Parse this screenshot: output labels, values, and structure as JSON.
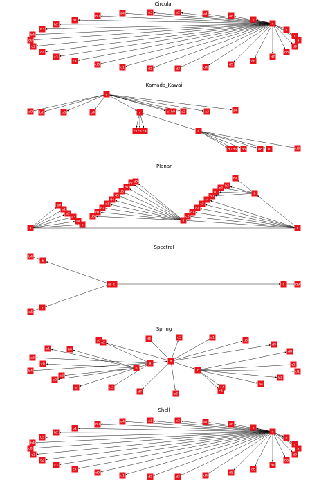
{
  "panels": [
    {
      "title": "Circular",
      "nodes": [
        {
          "id": "e",
          "label": "e"
        },
        {
          "id": "d",
          "label": "d"
        },
        {
          "id": "b",
          "label": "b"
        },
        {
          "id": "c",
          "label": "c"
        },
        {
          "id": "a",
          "label": "a"
        },
        {
          "id": "a1",
          "label": "a1"
        },
        {
          "id": "a2",
          "label": "a2"
        },
        {
          "id": "a3",
          "label": "a3"
        },
        {
          "id": "a4",
          "label": "a4"
        },
        {
          "id": "a6",
          "label": "a6"
        },
        {
          "id": "b0",
          "label": "b0"
        },
        {
          "id": "b1",
          "label": "b1"
        },
        {
          "id": "b2",
          "label": "b2"
        },
        {
          "id": "b3",
          "label": "b3"
        },
        {
          "id": "b4",
          "label": "b4"
        },
        {
          "id": "c0",
          "label": "c0"
        },
        {
          "id": "c1",
          "label": "c1"
        },
        {
          "id": "c2",
          "label": "c2"
        },
        {
          "id": "c3",
          "label": "c3"
        },
        {
          "id": "c4",
          "label": "c4"
        },
        {
          "id": "d0",
          "label": "d0"
        },
        {
          "id": "d1",
          "label": "d1"
        },
        {
          "id": "d2",
          "label": "d2"
        },
        {
          "id": "d3",
          "label": "d3"
        },
        {
          "id": "d4",
          "label": "d4"
        },
        {
          "id": "d5",
          "label": "d5"
        },
        {
          "id": "d6",
          "label": "d6"
        },
        {
          "id": "d7",
          "label": "d7"
        },
        {
          "id": "d8",
          "label": "d8"
        },
        {
          "id": "d9",
          "label": "d9"
        }
      ]
    },
    {
      "title": "Kamada_Kawai",
      "nodes": [
        {
          "id": "a",
          "label": "a"
        },
        {
          "id": "c",
          "label": "c"
        },
        {
          "id": "d",
          "label": "d"
        },
        {
          "id": "a0",
          "label": "a0"
        },
        {
          "id": "b2",
          "label": "b2"
        },
        {
          "id": "b3",
          "label": "b3"
        },
        {
          "id": "b4",
          "label": "b4"
        },
        {
          "id": "a1",
          "label": "a1"
        },
        {
          "id": "b0",
          "label": "b0"
        },
        {
          "id": "a2",
          "label": "a2"
        },
        {
          "id": "a3",
          "label": "a3"
        },
        {
          "id": "a4",
          "label": "a4"
        },
        {
          "id": "c1",
          "label": "c1"
        },
        {
          "id": "c3",
          "label": "c3"
        },
        {
          "id": "c4",
          "label": "c4"
        },
        {
          "id": "d0",
          "label": "d0"
        },
        {
          "id": "d5",
          "label": "d5"
        },
        {
          "id": "d6",
          "label": "d6"
        },
        {
          "id": "d8",
          "label": "d8"
        },
        {
          "id": "e",
          "label": "e"
        },
        {
          "id": "d9",
          "label": "d9"
        }
      ]
    },
    {
      "title": "Planar",
      "nodes": [
        {
          "id": "a",
          "label": "a"
        },
        {
          "id": "e",
          "label": "e"
        },
        {
          "id": "d",
          "label": "d"
        },
        {
          "id": "c",
          "label": "c"
        },
        {
          "id": "b",
          "label": "b"
        },
        {
          "id": "a0",
          "label": "a0"
        },
        {
          "id": "a1",
          "label": "a1"
        },
        {
          "id": "a2",
          "label": "a2"
        },
        {
          "id": "a3",
          "label": "a3"
        },
        {
          "id": "a4",
          "label": "a4"
        },
        {
          "id": "d0",
          "label": "d0"
        },
        {
          "id": "d1",
          "label": "d1"
        },
        {
          "id": "d2",
          "label": "d2"
        },
        {
          "id": "d3",
          "label": "d3"
        },
        {
          "id": "d4",
          "label": "d4"
        },
        {
          "id": "d5",
          "label": "d5"
        },
        {
          "id": "d6",
          "label": "d6"
        },
        {
          "id": "d7",
          "label": "d7"
        },
        {
          "id": "d8",
          "label": "d8"
        },
        {
          "id": "d9",
          "label": "d9"
        },
        {
          "id": "c0",
          "label": "c0"
        },
        {
          "id": "c1",
          "label": "c1"
        },
        {
          "id": "c2",
          "label": "c2"
        },
        {
          "id": "c3",
          "label": "c3"
        },
        {
          "id": "c4",
          "label": "c4"
        },
        {
          "id": "b0",
          "label": "b0"
        },
        {
          "id": "b1",
          "label": "b1"
        },
        {
          "id": "b2",
          "label": "b2"
        },
        {
          "id": "b3",
          "label": "b3"
        },
        {
          "id": "b4",
          "label": "b4"
        }
      ]
    },
    {
      "title": "Spectral",
      "nodes": [
        {
          "id": "b4",
          "label": "b4"
        },
        {
          "id": "b",
          "label": "b"
        },
        {
          "id": "ab",
          "label": "ab"
        },
        {
          "id": "c",
          "label": "c"
        },
        {
          "id": "a",
          "label": "a"
        },
        {
          "id": "a4",
          "label": "a4"
        },
        {
          "id": "d",
          "label": "d"
        },
        {
          "id": "d9",
          "label": "d9"
        }
      ]
    },
    {
      "title": "Spring",
      "nodes": [
        {
          "id": "a",
          "label": "a"
        },
        {
          "id": "b",
          "label": "b"
        },
        {
          "id": "c",
          "label": "c"
        },
        {
          "id": "d",
          "label": "d"
        },
        {
          "id": "e",
          "label": "e"
        },
        {
          "id": "b1",
          "label": "b1"
        },
        {
          "id": "b0",
          "label": "b0"
        },
        {
          "id": "a3",
          "label": "a3"
        },
        {
          "id": "a2x",
          "label": "a2"
        },
        {
          "id": "d4",
          "label": "d4"
        },
        {
          "id": "d5",
          "label": "d5"
        },
        {
          "id": "a1",
          "label": "a1"
        },
        {
          "id": "d0",
          "label": "d0"
        },
        {
          "id": "d9",
          "label": "d9"
        },
        {
          "id": "d8",
          "label": "d8"
        },
        {
          "id": "c0",
          "label": "c0"
        },
        {
          "id": "b4",
          "label": "b4"
        },
        {
          "id": "c1",
          "label": "c1"
        },
        {
          "id": "c2",
          "label": "c2"
        },
        {
          "id": "d1",
          "label": "d1"
        },
        {
          "id": "a0",
          "label": "a0"
        },
        {
          "id": "a2",
          "label": "a2"
        },
        {
          "id": "b3",
          "label": "b3"
        },
        {
          "id": "d3",
          "label": "d3"
        },
        {
          "id": "d7",
          "label": "d7"
        },
        {
          "id": "b2",
          "label": "b2"
        },
        {
          "id": "c4",
          "label": "c4"
        },
        {
          "id": "c3",
          "label": "c3"
        },
        {
          "id": "a4",
          "label": "a4"
        },
        {
          "id": "a6",
          "label": "a6"
        }
      ]
    },
    {
      "title": "Shell",
      "nodes": [
        {
          "id": "e",
          "label": "e"
        },
        {
          "id": "d",
          "label": "d"
        },
        {
          "id": "b",
          "label": "b"
        },
        {
          "id": "c",
          "label": "c"
        },
        {
          "id": "a",
          "label": "a"
        },
        {
          "id": "a1",
          "label": "a1"
        },
        {
          "id": "a2",
          "label": "a2"
        },
        {
          "id": "a3",
          "label": "a3"
        },
        {
          "id": "a4",
          "label": "a4"
        },
        {
          "id": "a6",
          "label": "a6"
        },
        {
          "id": "b0",
          "label": "b0"
        },
        {
          "id": "b1",
          "label": "b1"
        },
        {
          "id": "b2",
          "label": "b2"
        },
        {
          "id": "b3",
          "label": "b3"
        },
        {
          "id": "b4",
          "label": "b4"
        },
        {
          "id": "c0",
          "label": "c0"
        },
        {
          "id": "c1",
          "label": "c1"
        },
        {
          "id": "c2",
          "label": "c2"
        },
        {
          "id": "c3",
          "label": "c3"
        },
        {
          "id": "c4",
          "label": "c4"
        },
        {
          "id": "d0",
          "label": "d0"
        },
        {
          "id": "d1",
          "label": "d1"
        },
        {
          "id": "d2",
          "label": "d2"
        },
        {
          "id": "d3",
          "label": "d3"
        },
        {
          "id": "d4",
          "label": "d4"
        },
        {
          "id": "d5",
          "label": "d5"
        },
        {
          "id": "d6",
          "label": "d6"
        },
        {
          "id": "d7",
          "label": "d7"
        },
        {
          "id": "d8",
          "label": "d8"
        },
        {
          "id": "d9",
          "label": "d9"
        }
      ]
    }
  ],
  "colors": {
    "node": "#e8141b",
    "node_text": "#ffffff",
    "edge": "#000000",
    "background": "#ffffff"
  }
}
